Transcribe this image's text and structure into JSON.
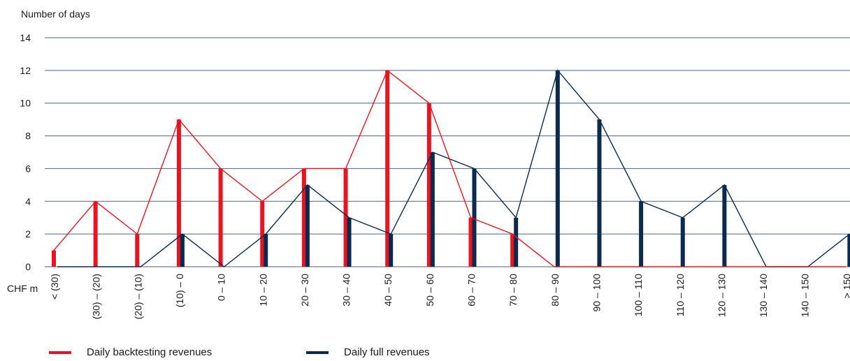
{
  "colors": {
    "backtesting": "#e8141f",
    "full": "#0b2a4e",
    "grid": "#4a6485",
    "text": "#1a1a1a"
  },
  "chart_data": {
    "type": "bar",
    "ylabel": "Number of days",
    "xlabel": "CHF m",
    "ylim": [
      0,
      14
    ],
    "yticks": [
      "0",
      "2",
      "4",
      "6",
      "8",
      "10",
      "12",
      "14"
    ],
    "grid": true,
    "legend_position": "bottom-left",
    "categories": [
      "< (30)",
      "(30) – (20)",
      "(20) – (10)",
      "(10) – 0",
      "0 – 10",
      "10 – 20",
      "20 – 30",
      "30 – 40",
      "40 – 50",
      "50 – 60",
      "60 – 70",
      "70 – 80",
      "80 – 90",
      "90 – 100",
      "100 – 110",
      "110 – 120",
      "120 – 130",
      "130 – 140",
      "140 – 150",
      "> 150"
    ],
    "series": [
      {
        "name": "Daily backtesting revenues",
        "values": [
          1,
          4,
          2,
          9,
          6,
          4,
          6,
          6,
          12,
          10,
          3,
          2,
          0,
          0,
          0,
          0,
          0,
          0,
          0,
          0
        ]
      },
      {
        "name": "Daily full revenues",
        "values": [
          0,
          0,
          0,
          2,
          0,
          2,
          5,
          3,
          2,
          7,
          6,
          3,
          12,
          9,
          4,
          3,
          5,
          0,
          0,
          2
        ]
      }
    ]
  }
}
